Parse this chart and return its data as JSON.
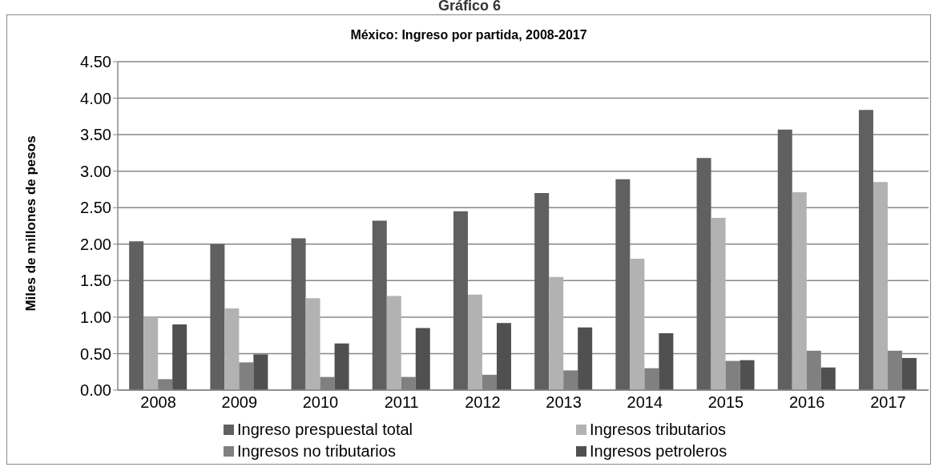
{
  "chart_data": {
    "type": "bar",
    "title": "México: Ingreso por partida, 2008-2017",
    "annotations": [
      "Gráfico 6"
    ],
    "ylabel": "Miles de millones de pesos",
    "categories": [
      "2008",
      "2009",
      "2010",
      "2011",
      "2012",
      "2013",
      "2014",
      "2015",
      "2016",
      "2017"
    ],
    "series": [
      {
        "name": "Ingreso prespuestal total",
        "color": "#606060",
        "values": [
          2.04,
          2.0,
          2.08,
          2.32,
          2.45,
          2.7,
          2.89,
          3.18,
          3.57,
          3.84
        ]
      },
      {
        "name": "Ingresos tributarios",
        "color": "#b2b2b2",
        "values": [
          1.0,
          1.12,
          1.26,
          1.29,
          1.31,
          1.55,
          1.8,
          2.36,
          2.71,
          2.85
        ]
      },
      {
        "name": "Ingresos no tributarios",
        "color": "#808080",
        "values": [
          0.15,
          0.38,
          0.18,
          0.18,
          0.21,
          0.27,
          0.3,
          0.4,
          0.54,
          0.54
        ]
      },
      {
        "name": "Ingresos petroleros",
        "color": "#505050",
        "values": [
          0.9,
          0.49,
          0.64,
          0.85,
          0.92,
          0.86,
          0.78,
          0.41,
          0.31,
          0.44
        ]
      }
    ],
    "ylim": [
      0,
      4.5
    ],
    "yticks": [
      {
        "value": 0,
        "label": "0.00"
      },
      {
        "value": 0.5,
        "label": "0.50"
      },
      {
        "value": 1,
        "label": "1.00"
      },
      {
        "value": 1.5,
        "label": "1.50"
      },
      {
        "value": 2,
        "label": "2.00"
      },
      {
        "value": 2.5,
        "label": "2.50"
      },
      {
        "value": 3,
        "label": "3.00"
      },
      {
        "value": 3.5,
        "label": "3.50"
      },
      {
        "value": 4,
        "label": "4.00"
      },
      {
        "value": 4.5,
        "label": "4.50"
      }
    ],
    "grid": "y",
    "legend": "bottom"
  }
}
